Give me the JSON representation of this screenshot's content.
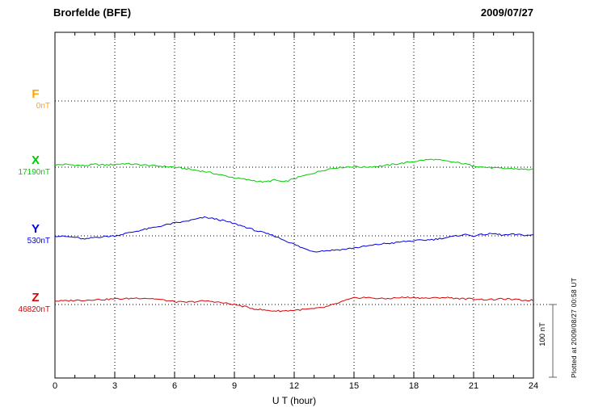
{
  "chart_data": {
    "type": "line",
    "title": "Brorfelde (BFE)",
    "date_label": "2009/07/27",
    "xlabel": "U T (hour)",
    "x_ticks": [
      "0",
      "3",
      "6",
      "9",
      "12",
      "15",
      "18",
      "21",
      "24"
    ],
    "x_range": [
      0,
      24
    ],
    "sample_step_hours": 0.5,
    "grid": "dotted",
    "scale_bar_label": "100 nT",
    "scale_bar_nT": 100,
    "plotted_note": "Plotted at 2009/08/27 00:58 UT",
    "series": [
      {
        "name": "F",
        "color": "#FFA500",
        "baseline_label": "0nT",
        "baseline_nT": 0,
        "trace_visible": false,
        "offsets_nT": []
      },
      {
        "name": "X",
        "color": "#00CC00",
        "baseline_label": "17190nT",
        "baseline_nT": 17190,
        "trace_visible": true,
        "offsets_nT": [
          3,
          4,
          3,
          2,
          4,
          3,
          4,
          5,
          4,
          3,
          2,
          1,
          0,
          -2,
          -4,
          -6,
          -9,
          -12,
          -15,
          -17,
          -19,
          -21,
          -18,
          -21,
          -16,
          -12,
          -8,
          -4,
          -1,
          0,
          1,
          0,
          1,
          2,
          4,
          6,
          8,
          10,
          11,
          9,
          7,
          5,
          2,
          0,
          -1,
          -2,
          -2,
          -3,
          -3
        ]
      },
      {
        "name": "Y",
        "color": "#0000DD",
        "baseline_label": "530nT",
        "baseline_nT": 530,
        "trace_visible": true,
        "offsets_nT": [
          0,
          -1,
          -2,
          -5,
          -2,
          -1,
          0,
          3,
          6,
          9,
          12,
          15,
          18,
          20,
          23,
          26,
          24,
          21,
          17,
          13,
          8,
          4,
          0,
          -6,
          -12,
          -18,
          -22,
          -21,
          -20,
          -19,
          -17,
          -15,
          -13,
          -11,
          -10,
          -8,
          -7,
          -6,
          -5,
          -3,
          -1,
          2,
          0,
          2,
          3,
          1,
          2,
          1,
          1
        ]
      },
      {
        "name": "Z",
        "color": "#DD0000",
        "baseline_label": "46820nT",
        "baseline_nT": 46820,
        "trace_visible": true,
        "offsets_nT": [
          5,
          5,
          6,
          6,
          7,
          7,
          8,
          8,
          9,
          9,
          8,
          6,
          4,
          3,
          4,
          5,
          4,
          2,
          0,
          -3,
          -6,
          -8,
          -9,
          -9,
          -8,
          -7,
          -6,
          -4,
          0,
          5,
          9,
          10,
          9,
          8,
          9,
          10,
          10,
          9,
          9,
          10,
          9,
          8,
          8,
          7,
          7,
          8,
          7,
          6,
          6
        ]
      }
    ]
  }
}
